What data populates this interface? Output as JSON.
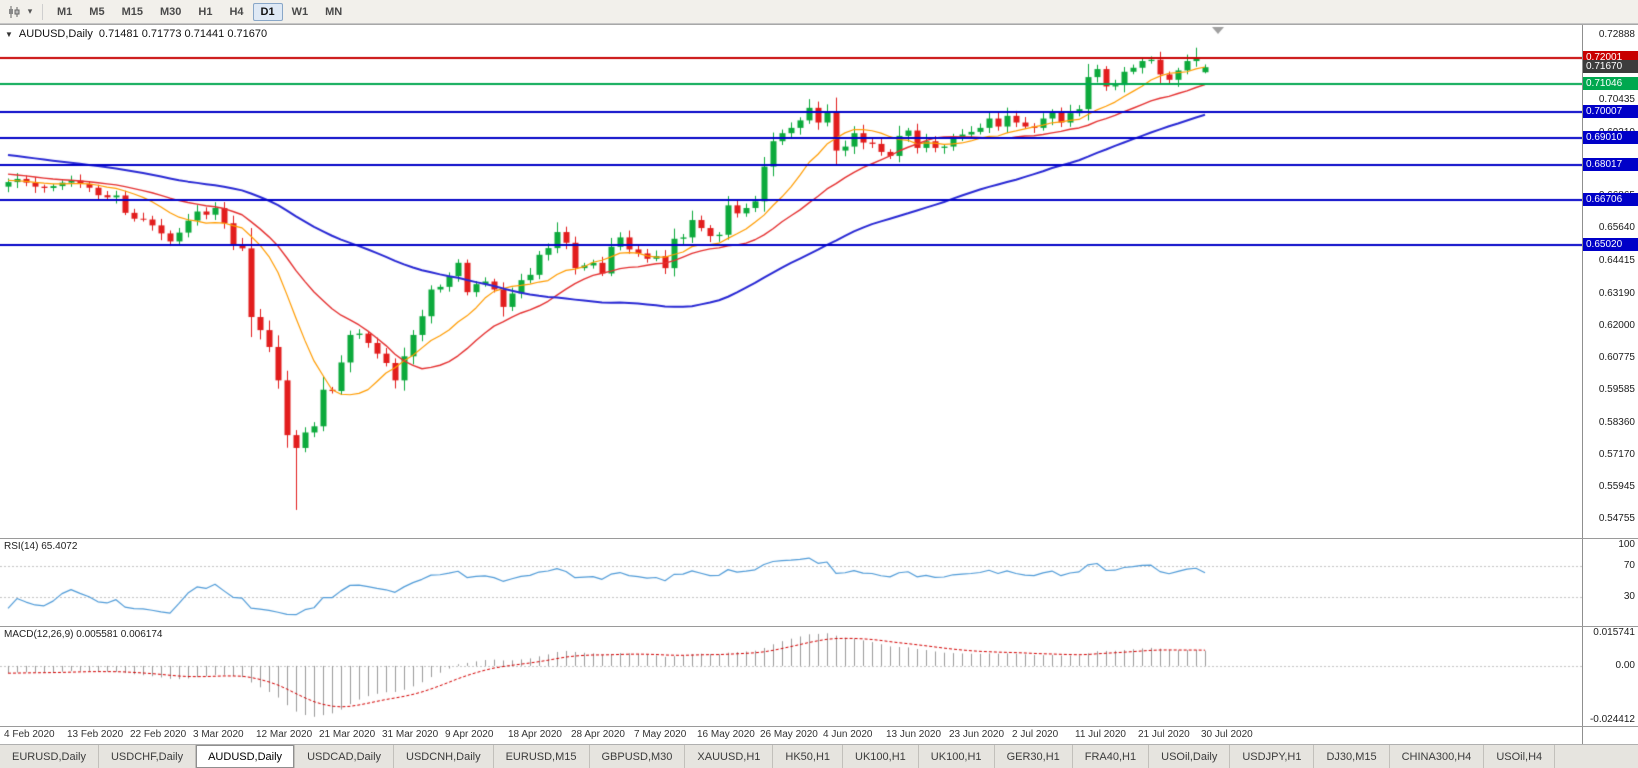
{
  "toolbar": {
    "dropdown_caret": "▾",
    "timeframes": [
      {
        "label": "M1",
        "active": false
      },
      {
        "label": "M5",
        "active": false
      },
      {
        "label": "M15",
        "active": false
      },
      {
        "label": "M30",
        "active": false
      },
      {
        "label": "H1",
        "active": false
      },
      {
        "label": "H4",
        "active": false
      },
      {
        "label": "D1",
        "active": true
      },
      {
        "label": "W1",
        "active": false
      },
      {
        "label": "MN",
        "active": false
      }
    ]
  },
  "chart": {
    "collapse_icon": "▼",
    "title": "AUDUSD,Daily",
    "ohlc_text": "0.71481 0.71773 0.71441 0.71670"
  },
  "rsi": {
    "label": "RSI(14) 65.4072",
    "levels": [
      70,
      30
    ],
    "axis_labels": [
      {
        "text": "100",
        "value": 100
      },
      {
        "text": "70",
        "value": 70
      },
      {
        "text": "30",
        "value": 30
      }
    ]
  },
  "macd": {
    "label": "MACD(12,26,9) 0.005581 0.006174",
    "axis_labels": [
      {
        "text": "0.015741",
        "value": 0.015741
      },
      {
        "text": "0.00",
        "value": 0
      },
      {
        "text": "-0.024412",
        "value": -0.024412
      }
    ]
  },
  "price_axis": {
    "labels": [
      "0.72888",
      "0.71660",
      "0.70435",
      "0.69210",
      "0.67985",
      "0.66865",
      "0.65640",
      "0.64415",
      "0.63190",
      "0.62000",
      "0.60775",
      "0.59585",
      "0.58360",
      "0.57170",
      "0.55945",
      "0.54755"
    ],
    "boxes": [
      {
        "name": "resistance-price-box",
        "text": "0.72001",
        "price": 0.72001,
        "color": "#c80000"
      },
      {
        "name": "current-price-box",
        "text": "0.71670",
        "price": 0.7167,
        "color": "#3c3c3c"
      },
      {
        "name": "green-level-price-box",
        "text": "0.71046",
        "price": 0.71046,
        "color": "#00a84f"
      },
      {
        "name": "support-price-box-1",
        "text": "0.70007",
        "price": 0.70007,
        "color": "#0000c8"
      },
      {
        "name": "support-price-box-2",
        "text": "0.69010",
        "price": 0.6901,
        "color": "#0000c8"
      },
      {
        "name": "support-price-box-3",
        "text": "0.68017",
        "price": 0.68017,
        "color": "#0000c8"
      },
      {
        "name": "support-price-box-4",
        "text": "0.66706",
        "price": 0.66706,
        "color": "#0000c8"
      },
      {
        "name": "support-price-box-5",
        "text": "0.65020",
        "price": 0.6502,
        "color": "#0000c8"
      }
    ]
  },
  "levels": [
    {
      "price": 0.72001,
      "color": "#c80000",
      "width": 2
    },
    {
      "price": 0.71046,
      "color": "#00a84f",
      "width": 2
    },
    {
      "price": 0.70007,
      "color": "#0000c8",
      "width": 2
    },
    {
      "price": 0.6901,
      "color": "#0000c8",
      "width": 2
    },
    {
      "price": 0.68017,
      "color": "#0000c8",
      "width": 2
    },
    {
      "price": 0.66706,
      "color": "#0000c8",
      "width": 2
    },
    {
      "price": 0.6502,
      "color": "#0000c8",
      "width": 2
    }
  ],
  "time_axis": {
    "labels": [
      "4 Feb 2020",
      "13 Feb 2020",
      "22 Feb 2020",
      "3 Mar 2020",
      "12 Mar 2020",
      "21 Mar 2020",
      "31 Mar 2020",
      "9 Apr 2020",
      "18 Apr 2020",
      "28 Apr 2020",
      "7 May 2020",
      "16 May 2020",
      "26 May 2020",
      "4 Jun 2020",
      "13 Jun 2020",
      "23 Jun 2020",
      "2 Jul 2020",
      "11 Jul 2020",
      "21 Jul 2020",
      "30 Jul 2020"
    ]
  },
  "tabs": [
    {
      "label": "EURUSD,Daily",
      "active": false
    },
    {
      "label": "USDCHF,Daily",
      "active": false
    },
    {
      "label": "AUDUSD,Daily",
      "active": true
    },
    {
      "label": "USDCAD,Daily",
      "active": false
    },
    {
      "label": "USDCNH,Daily",
      "active": false
    },
    {
      "label": "EURUSD,M15",
      "active": false
    },
    {
      "label": "GBPUSD,M30",
      "active": false
    },
    {
      "label": "XAUUSD,H1",
      "active": false
    },
    {
      "label": "HK50,H1",
      "active": false
    },
    {
      "label": "UK100,H1",
      "active": false
    },
    {
      "label": "UK100,H1",
      "active": false
    },
    {
      "label": "GER30,H1",
      "active": false
    },
    {
      "label": "FRA40,H1",
      "active": false
    },
    {
      "label": "USOil,Daily",
      "active": false
    },
    {
      "label": "USDJPY,H1",
      "active": false
    },
    {
      "label": "DJ30,M15",
      "active": false
    },
    {
      "label": "CHINA300,H4",
      "active": false
    },
    {
      "label": "USOil,H4",
      "active": false
    }
  ],
  "chart_data": {
    "type": "candlestick",
    "symbol": "AUDUSD",
    "timeframe": "Daily",
    "last_bar": {
      "open": 0.71481,
      "high": 0.71773,
      "low": 0.71441,
      "close": 0.7167
    },
    "up_color": "#0caa3c",
    "down_color": "#e21d1d",
    "price_scale": {
      "min": 0.5405,
      "max": 0.7325
    },
    "candles": {
      "first_open": 0.672,
      "closes": [
        0.6737,
        0.6749,
        0.6735,
        0.672,
        0.6715,
        0.6722,
        0.6735,
        0.6743,
        0.673,
        0.6716,
        0.6688,
        0.668,
        0.6687,
        0.6622,
        0.66,
        0.6597,
        0.6575,
        0.6545,
        0.6515,
        0.6548,
        0.6593,
        0.6627,
        0.6615,
        0.664,
        0.6583,
        0.6503,
        0.6489,
        0.6232,
        0.6183,
        0.612,
        0.5995,
        0.579,
        0.5742,
        0.58,
        0.5823,
        0.596,
        0.5955,
        0.6062,
        0.6165,
        0.617,
        0.6135,
        0.6095,
        0.606,
        0.5995,
        0.6085,
        0.6165,
        0.6235,
        0.6335,
        0.6345,
        0.6385,
        0.6435,
        0.6325,
        0.6355,
        0.6365,
        0.6335,
        0.627,
        0.632,
        0.637,
        0.639,
        0.6465,
        0.649,
        0.655,
        0.651,
        0.6415,
        0.6425,
        0.6435,
        0.6395,
        0.6495,
        0.653,
        0.6485,
        0.647,
        0.645,
        0.646,
        0.6415,
        0.6525,
        0.653,
        0.6595,
        0.6565,
        0.6535,
        0.654,
        0.665,
        0.662,
        0.664,
        0.6665,
        0.6795,
        0.689,
        0.692,
        0.694,
        0.6968,
        0.7015,
        0.696,
        0.7,
        0.6855,
        0.687,
        0.692,
        0.6885,
        0.688,
        0.685,
        0.6835,
        0.691,
        0.693,
        0.6865,
        0.689,
        0.6865,
        0.687,
        0.6905,
        0.6915,
        0.6925,
        0.694,
        0.6975,
        0.6945,
        0.6985,
        0.696,
        0.6945,
        0.694,
        0.6975,
        0.7,
        0.696,
        0.6995,
        0.701,
        0.713,
        0.716,
        0.7095,
        0.71,
        0.715,
        0.7165,
        0.719,
        0.7195,
        0.714,
        0.712,
        0.7155,
        0.719,
        0.7205,
        0.7167
      ],
      "overrides": {
        "32": {
          "low": 0.551
        },
        "132": {
          "high": 0.724
        },
        "133": {
          "open": 0.71481,
          "high": 0.71773,
          "low": 0.71441,
          "close": 0.7167
        }
      }
    },
    "moving_averages": [
      {
        "name": "fast-ma",
        "period": 10,
        "type": "sma",
        "color": "#ff9c00",
        "width": 1.2
      },
      {
        "name": "medium-ma",
        "period": 20,
        "type": "sma",
        "color": "#e53030",
        "width": 1.4
      },
      {
        "name": "slow-ma",
        "period": 50,
        "type": "sma",
        "color": "#2828d4",
        "width": 2
      }
    ],
    "rsi": {
      "period": 14,
      "current": 65.4072,
      "color": "#4f9bd8"
    },
    "macd": {
      "fast": 12,
      "slow": 26,
      "signal": 9,
      "current": 0.005581,
      "signal_current": 0.006174,
      "histogram_color": "#9a9a9a",
      "signal_color": "#d40000",
      "scale": {
        "min": -0.027,
        "max": 0.0175
      }
    }
  }
}
